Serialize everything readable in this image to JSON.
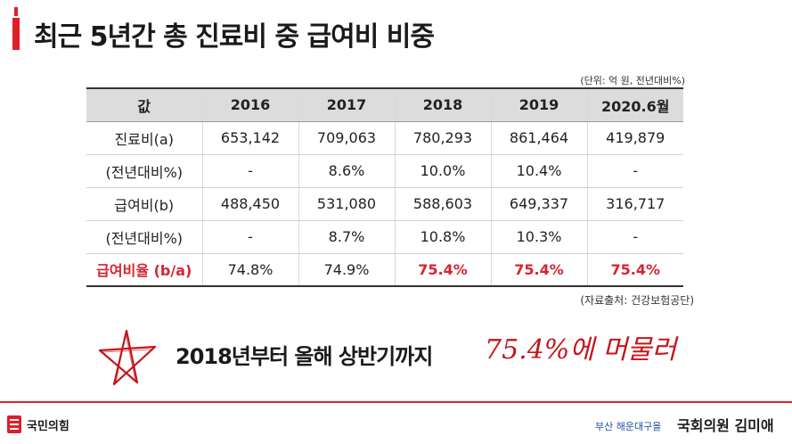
{
  "title": "최근 5년간 총 진료비 중 급여비 비중",
  "unit_note": "(단위: 억 원, 전년대비%)",
  "table": {
    "headers": [
      "값",
      "2016",
      "2017",
      "2018",
      "2019",
      "2020.6월"
    ],
    "rows": [
      [
        "진료비(a)",
        "653,142",
        "709,063",
        "780,293",
        "861,464",
        "419,879"
      ],
      [
        "(전년대비%)",
        "-",
        "8.6%",
        "10.0%",
        "10.4%",
        "-"
      ],
      [
        "급여비(b)",
        "488,450",
        "531,080",
        "588,603",
        "649,337",
        "316,717"
      ],
      [
        "(전년대비%)",
        "-",
        "8.7%",
        "10.8%",
        "10.3%",
        "-"
      ],
      [
        "급여비율 (b/a)",
        "74.8%",
        "74.9%",
        "75.4%",
        "75.4%",
        "75.4%"
      ]
    ]
  },
  "source_note": "(자료출처: 건강보험공단)",
  "headline": "2018년부터 올해 상반기까지",
  "handwritten_note": "75.4%에 머물러",
  "footer": {
    "party": "국민의힘",
    "district": "부산 해운대구을",
    "member": "국회의원 김미애"
  },
  "colors": {
    "accent": "#e11d2a",
    "highlight": "#d8232f",
    "district_blue": "#1d4f9e"
  }
}
